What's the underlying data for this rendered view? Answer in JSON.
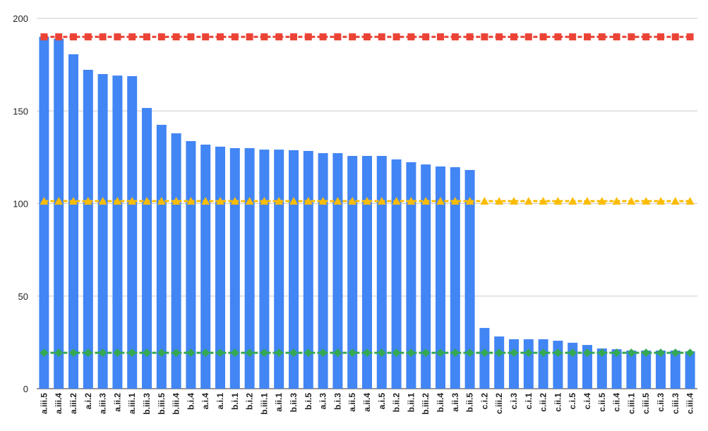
{
  "chart_data": {
    "type": "bar",
    "categories": [
      "a.iii.5",
      "a.iii.4",
      "a.iii.2",
      "a.i.2",
      "a.iii.3",
      "a.ii.2",
      "a.iii.1",
      "b.iii.3",
      "b.iii.5",
      "b.iii.4",
      "b.i.4",
      "a.i.4",
      "a.i.1",
      "b.i.1",
      "b.i.2",
      "b.iii.1",
      "a.ii.1",
      "b.ii.3",
      "b.i.5",
      "a.i.3",
      "b.i.3",
      "a.ii.5",
      "a.ii.4",
      "a.i.5",
      "b.ii.2",
      "b.ii.1",
      "b.iii.2",
      "b.ii.4",
      "a.ii.3",
      "b.ii.5",
      "c.i.2",
      "c.iii.2",
      "c.i.3",
      "c.i.1",
      "c.ii.2",
      "c.ii.1",
      "c.i.5",
      "c.i.4",
      "c.ii.5",
      "c.ii.4",
      "c.iii.1",
      "c.iii.5",
      "c.ii.3",
      "c.iii.3",
      "c.iii.4"
    ],
    "series": [
      {
        "type": "bar",
        "color": "#4285f4",
        "values": [
          190,
          189,
          180.6,
          172.2,
          169.9,
          169.1,
          168.8,
          151.6,
          142.5,
          137.9,
          133.7,
          131.8,
          130.7,
          129.9,
          129.9,
          129.1,
          129.1,
          128.8,
          128.4,
          127.2,
          127.2,
          125.7,
          125.7,
          125.7,
          123.8,
          122.3,
          121.1,
          120,
          119.6,
          118.1,
          32.8,
          28.2,
          26.7,
          26.7,
          26.7,
          25.9,
          24.8,
          23.6,
          21.7,
          21.3,
          20.6,
          20.6,
          20.6,
          20.6,
          20.2
        ]
      },
      {
        "type": "line",
        "marker": "square",
        "color": "#ea4335",
        "values": [
          190,
          190,
          190,
          190,
          190,
          190,
          190,
          190,
          190,
          190,
          190,
          190,
          190,
          190,
          190,
          190,
          190,
          190,
          190,
          190,
          190,
          190,
          190,
          190,
          190,
          190,
          190,
          190,
          190,
          190,
          190,
          190,
          190,
          190,
          190,
          190,
          190,
          190,
          190,
          190,
          190,
          190,
          190,
          190,
          190
        ]
      },
      {
        "type": "line",
        "marker": "triangle",
        "color": "#fbbc04",
        "values": [
          101.3,
          101.3,
          101.3,
          101.3,
          101.3,
          101.3,
          101.3,
          101.3,
          101.3,
          101.3,
          101.3,
          101.3,
          101.3,
          101.3,
          101.3,
          101.3,
          101.3,
          101.3,
          101.3,
          101.3,
          101.3,
          101.3,
          101.3,
          101.3,
          101.3,
          101.3,
          101.3,
          101.3,
          101.3,
          101.3,
          101.3,
          101.3,
          101.3,
          101.3,
          101.3,
          101.3,
          101.3,
          101.3,
          101.3,
          101.3,
          101.3,
          101.3,
          101.3,
          101.3,
          101.3
        ]
      },
      {
        "type": "line",
        "marker": "diamond",
        "color": "#34a853",
        "values": [
          19.4,
          19.4,
          19.4,
          19.4,
          19.4,
          19.4,
          19.4,
          19.4,
          19.4,
          19.4,
          19.4,
          19.4,
          19.4,
          19.4,
          19.4,
          19.4,
          19.4,
          19.4,
          19.4,
          19.4,
          19.4,
          19.4,
          19.4,
          19.4,
          19.4,
          19.4,
          19.4,
          19.4,
          19.4,
          19.4,
          19.4,
          19.4,
          19.4,
          19.4,
          19.4,
          19.4,
          19.4,
          19.4,
          19.4,
          19.4,
          19.4,
          19.4,
          19.4,
          19.4,
          19.4
        ]
      }
    ],
    "ylim": [
      0,
      200
    ],
    "yticks": [
      0,
      50,
      100,
      150,
      200
    ],
    "grid": true
  }
}
